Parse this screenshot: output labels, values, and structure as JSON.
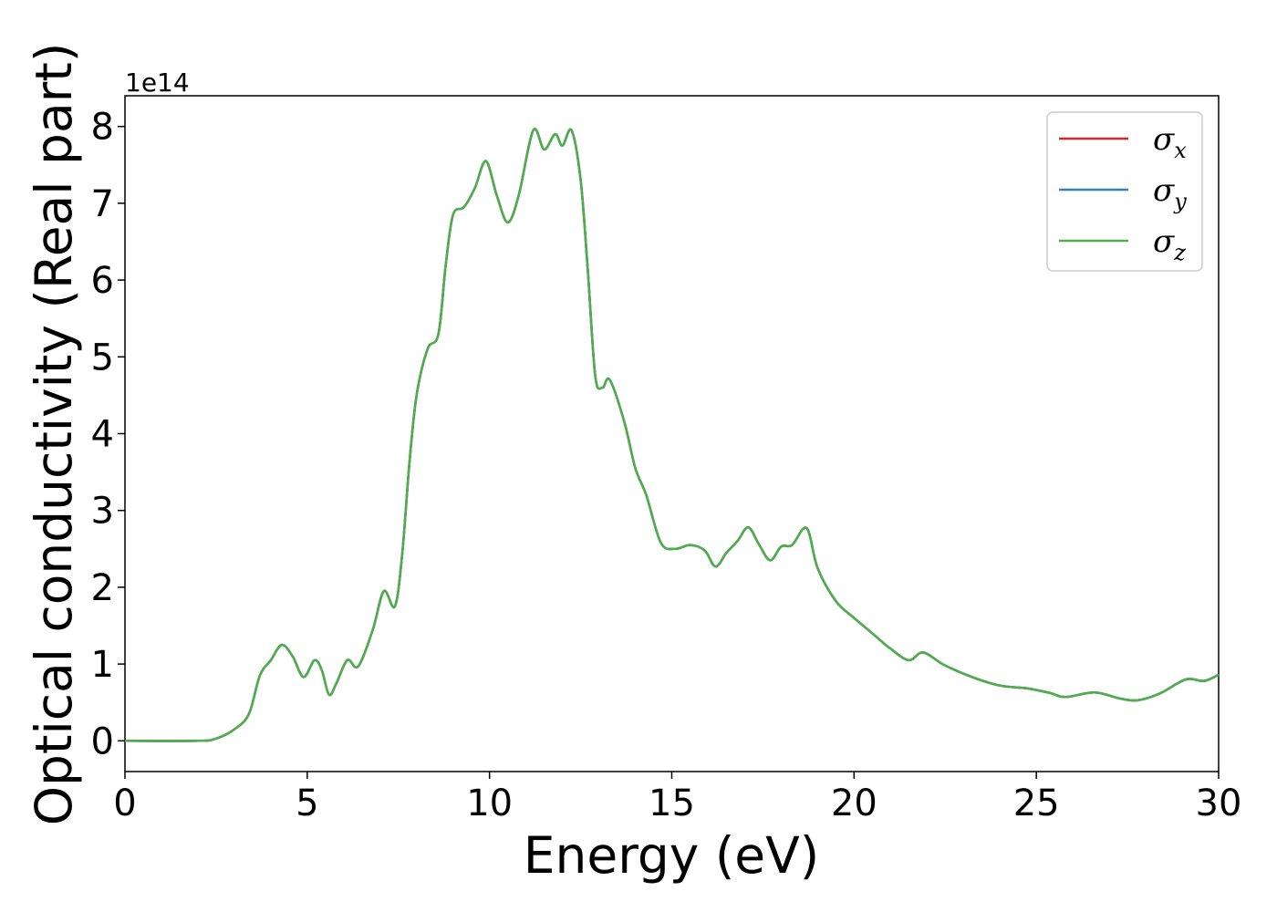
{
  "chart_data": {
    "type": "line",
    "xlabel": "Energy (eV)",
    "ylabel": "Optical conductivity (Real part)",
    "y_offset_label": "1e14",
    "xlim": [
      0,
      30
    ],
    "ylim": [
      -0.4,
      8.4
    ],
    "x_ticks": [
      "0",
      "5",
      "10",
      "15",
      "20",
      "25",
      "30"
    ],
    "y_ticks": [
      "0",
      "1",
      "2",
      "3",
      "4",
      "5",
      "6",
      "7",
      "8"
    ],
    "grid": false,
    "legend_position": "top-right",
    "series": [
      {
        "name": "σ",
        "subscript": "x",
        "color": "#d62728",
        "points": [
          [
            0,
            0
          ],
          [
            2,
            0
          ],
          [
            2.5,
            0.03
          ],
          [
            3,
            0.15
          ],
          [
            3.4,
            0.35
          ],
          [
            3.7,
            0.85
          ],
          [
            4,
            1.05
          ],
          [
            4.3,
            1.25
          ],
          [
            4.6,
            1.1
          ],
          [
            4.9,
            0.83
          ],
          [
            5.2,
            1.05
          ],
          [
            5.4,
            0.92
          ],
          [
            5.6,
            0.6
          ],
          [
            5.8,
            0.75
          ],
          [
            6.1,
            1.05
          ],
          [
            6.4,
            0.97
          ],
          [
            6.8,
            1.45
          ],
          [
            7.1,
            1.95
          ],
          [
            7.4,
            1.75
          ],
          [
            7.6,
            2.4
          ],
          [
            7.8,
            3.6
          ],
          [
            8,
            4.5
          ],
          [
            8.3,
            5.1
          ],
          [
            8.6,
            5.3
          ],
          [
            8.8,
            6.2
          ],
          [
            9,
            6.85
          ],
          [
            9.3,
            6.95
          ],
          [
            9.6,
            7.2
          ],
          [
            9.9,
            7.55
          ],
          [
            10.2,
            7.1
          ],
          [
            10.5,
            6.75
          ],
          [
            10.8,
            7.1
          ],
          [
            11.2,
            7.95
          ],
          [
            11.5,
            7.7
          ],
          [
            11.8,
            7.9
          ],
          [
            12,
            7.75
          ],
          [
            12.25,
            7.95
          ],
          [
            12.5,
            7.3
          ],
          [
            12.7,
            6.1
          ],
          [
            12.9,
            4.75
          ],
          [
            13.1,
            4.6
          ],
          [
            13.3,
            4.7
          ],
          [
            13.7,
            4.15
          ],
          [
            14,
            3.55
          ],
          [
            14.3,
            3.2
          ],
          [
            14.7,
            2.58
          ],
          [
            15.1,
            2.5
          ],
          [
            15.5,
            2.55
          ],
          [
            15.9,
            2.48
          ],
          [
            16.2,
            2.27
          ],
          [
            16.5,
            2.45
          ],
          [
            16.8,
            2.6
          ],
          [
            17.1,
            2.78
          ],
          [
            17.4,
            2.55
          ],
          [
            17.7,
            2.35
          ],
          [
            18,
            2.53
          ],
          [
            18.3,
            2.55
          ],
          [
            18.7,
            2.77
          ],
          [
            19,
            2.25
          ],
          [
            19.5,
            1.82
          ],
          [
            20,
            1.6
          ],
          [
            20.5,
            1.4
          ],
          [
            21,
            1.2
          ],
          [
            21.5,
            1.05
          ],
          [
            21.9,
            1.15
          ],
          [
            22.5,
            0.98
          ],
          [
            23.3,
            0.82
          ],
          [
            24,
            0.72
          ],
          [
            24.8,
            0.68
          ],
          [
            25.4,
            0.62
          ],
          [
            25.8,
            0.57
          ],
          [
            26.6,
            0.63
          ],
          [
            27.3,
            0.55
          ],
          [
            27.8,
            0.53
          ],
          [
            28.4,
            0.62
          ],
          [
            29.1,
            0.8
          ],
          [
            29.6,
            0.78
          ],
          [
            30,
            0.86
          ]
        ]
      },
      {
        "name": "σ",
        "subscript": "y",
        "color": "#377eb8",
        "points": [
          [
            0,
            0
          ],
          [
            2,
            0
          ],
          [
            2.5,
            0.03
          ],
          [
            3,
            0.15
          ],
          [
            3.4,
            0.35
          ],
          [
            3.7,
            0.85
          ],
          [
            4,
            1.05
          ],
          [
            4.3,
            1.25
          ],
          [
            4.6,
            1.1
          ],
          [
            4.9,
            0.83
          ],
          [
            5.2,
            1.05
          ],
          [
            5.4,
            0.92
          ],
          [
            5.6,
            0.6
          ],
          [
            5.8,
            0.75
          ],
          [
            6.1,
            1.05
          ],
          [
            6.4,
            0.97
          ],
          [
            6.8,
            1.45
          ],
          [
            7.1,
            1.95
          ],
          [
            7.4,
            1.75
          ],
          [
            7.6,
            2.4
          ],
          [
            7.8,
            3.6
          ],
          [
            8,
            4.5
          ],
          [
            8.3,
            5.1
          ],
          [
            8.6,
            5.3
          ],
          [
            8.8,
            6.2
          ],
          [
            9,
            6.85
          ],
          [
            9.3,
            6.95
          ],
          [
            9.6,
            7.2
          ],
          [
            9.9,
            7.55
          ],
          [
            10.2,
            7.1
          ],
          [
            10.5,
            6.75
          ],
          [
            10.8,
            7.1
          ],
          [
            11.2,
            7.95
          ],
          [
            11.5,
            7.7
          ],
          [
            11.8,
            7.9
          ],
          [
            12,
            7.75
          ],
          [
            12.25,
            7.95
          ],
          [
            12.5,
            7.3
          ],
          [
            12.7,
            6.1
          ],
          [
            12.9,
            4.75
          ],
          [
            13.1,
            4.6
          ],
          [
            13.3,
            4.7
          ],
          [
            13.7,
            4.15
          ],
          [
            14,
            3.55
          ],
          [
            14.3,
            3.2
          ],
          [
            14.7,
            2.58
          ],
          [
            15.1,
            2.5
          ],
          [
            15.5,
            2.55
          ],
          [
            15.9,
            2.48
          ],
          [
            16.2,
            2.27
          ],
          [
            16.5,
            2.45
          ],
          [
            16.8,
            2.6
          ],
          [
            17.1,
            2.78
          ],
          [
            17.4,
            2.55
          ],
          [
            17.7,
            2.35
          ],
          [
            18,
            2.53
          ],
          [
            18.3,
            2.55
          ],
          [
            18.7,
            2.77
          ],
          [
            19,
            2.25
          ],
          [
            19.5,
            1.82
          ],
          [
            20,
            1.6
          ],
          [
            20.5,
            1.4
          ],
          [
            21,
            1.2
          ],
          [
            21.5,
            1.05
          ],
          [
            21.9,
            1.15
          ],
          [
            22.5,
            0.98
          ],
          [
            23.3,
            0.82
          ],
          [
            24,
            0.72
          ],
          [
            24.8,
            0.68
          ],
          [
            25.4,
            0.62
          ],
          [
            25.8,
            0.57
          ],
          [
            26.6,
            0.63
          ],
          [
            27.3,
            0.55
          ],
          [
            27.8,
            0.53
          ],
          [
            28.4,
            0.62
          ],
          [
            29.1,
            0.8
          ],
          [
            29.6,
            0.78
          ],
          [
            30,
            0.86
          ]
        ]
      },
      {
        "name": "σ",
        "subscript": "z",
        "color": "#4daf4a",
        "points": [
          [
            0,
            0
          ],
          [
            2,
            0
          ],
          [
            2.5,
            0.03
          ],
          [
            3,
            0.15
          ],
          [
            3.4,
            0.35
          ],
          [
            3.7,
            0.85
          ],
          [
            4,
            1.05
          ],
          [
            4.3,
            1.25
          ],
          [
            4.6,
            1.1
          ],
          [
            4.9,
            0.83
          ],
          [
            5.2,
            1.05
          ],
          [
            5.4,
            0.92
          ],
          [
            5.6,
            0.6
          ],
          [
            5.8,
            0.75
          ],
          [
            6.1,
            1.05
          ],
          [
            6.4,
            0.97
          ],
          [
            6.8,
            1.45
          ],
          [
            7.1,
            1.95
          ],
          [
            7.4,
            1.75
          ],
          [
            7.6,
            2.4
          ],
          [
            7.8,
            3.6
          ],
          [
            8,
            4.5
          ],
          [
            8.3,
            5.1
          ],
          [
            8.6,
            5.3
          ],
          [
            8.8,
            6.2
          ],
          [
            9,
            6.85
          ],
          [
            9.3,
            6.95
          ],
          [
            9.6,
            7.2
          ],
          [
            9.9,
            7.55
          ],
          [
            10.2,
            7.1
          ],
          [
            10.5,
            6.75
          ],
          [
            10.8,
            7.1
          ],
          [
            11.2,
            7.95
          ],
          [
            11.5,
            7.7
          ],
          [
            11.8,
            7.9
          ],
          [
            12,
            7.75
          ],
          [
            12.25,
            7.95
          ],
          [
            12.5,
            7.3
          ],
          [
            12.7,
            6.1
          ],
          [
            12.9,
            4.75
          ],
          [
            13.1,
            4.6
          ],
          [
            13.3,
            4.7
          ],
          [
            13.7,
            4.15
          ],
          [
            14,
            3.55
          ],
          [
            14.3,
            3.2
          ],
          [
            14.7,
            2.58
          ],
          [
            15.1,
            2.5
          ],
          [
            15.5,
            2.55
          ],
          [
            15.9,
            2.48
          ],
          [
            16.2,
            2.27
          ],
          [
            16.5,
            2.45
          ],
          [
            16.8,
            2.6
          ],
          [
            17.1,
            2.78
          ],
          [
            17.4,
            2.55
          ],
          [
            17.7,
            2.35
          ],
          [
            18,
            2.53
          ],
          [
            18.3,
            2.55
          ],
          [
            18.7,
            2.77
          ],
          [
            19,
            2.25
          ],
          [
            19.5,
            1.82
          ],
          [
            20,
            1.6
          ],
          [
            20.5,
            1.4
          ],
          [
            21,
            1.2
          ],
          [
            21.5,
            1.05
          ],
          [
            21.9,
            1.15
          ],
          [
            22.5,
            0.98
          ],
          [
            23.3,
            0.82
          ],
          [
            24,
            0.72
          ],
          [
            24.8,
            0.68
          ],
          [
            25.4,
            0.62
          ],
          [
            25.8,
            0.57
          ],
          [
            26.6,
            0.63
          ],
          [
            27.3,
            0.55
          ],
          [
            27.8,
            0.53
          ],
          [
            28.4,
            0.62
          ],
          [
            29.1,
            0.8
          ],
          [
            29.6,
            0.78
          ],
          [
            30,
            0.86
          ]
        ]
      }
    ]
  }
}
